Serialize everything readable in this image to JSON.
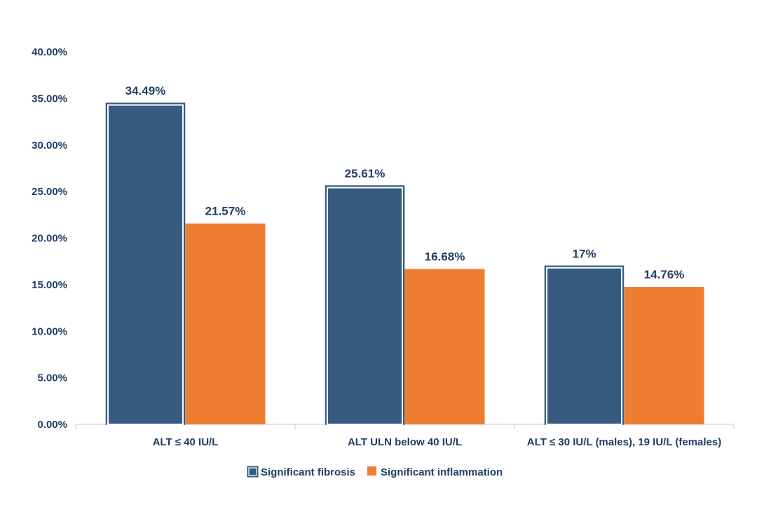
{
  "chart_data": {
    "type": "bar",
    "title": "",
    "xlabel": "",
    "ylabel": "",
    "ylim": [
      0,
      40
    ],
    "yticks": [
      "0.00%",
      "5.00%",
      "10.00%",
      "15.00%",
      "20.00%",
      "25.00%",
      "30.00%",
      "35.00%",
      "40.00%"
    ],
    "ytick_values": [
      0,
      5,
      10,
      15,
      20,
      25,
      30,
      35,
      40
    ],
    "grid": false,
    "legend_position": "bottom",
    "categories": [
      "ALT ≤ 40 IU/L",
      "ALT ULN below 40 IU/L",
      "ALT ≤ 30 IU/L (males), 19 IU/L (females)"
    ],
    "series": [
      {
        "name": "Significant fibrosis",
        "color": "#365a80",
        "values": [
          34.49,
          25.61,
          17
        ],
        "labels": [
          "34.49%",
          "25.61%",
          "17%"
        ]
      },
      {
        "name": "Significant inflammation",
        "color": "#ed7d31",
        "values": [
          21.57,
          16.68,
          14.76
        ],
        "labels": [
          "21.57%",
          "16.68%",
          "14.76%"
        ]
      }
    ]
  }
}
